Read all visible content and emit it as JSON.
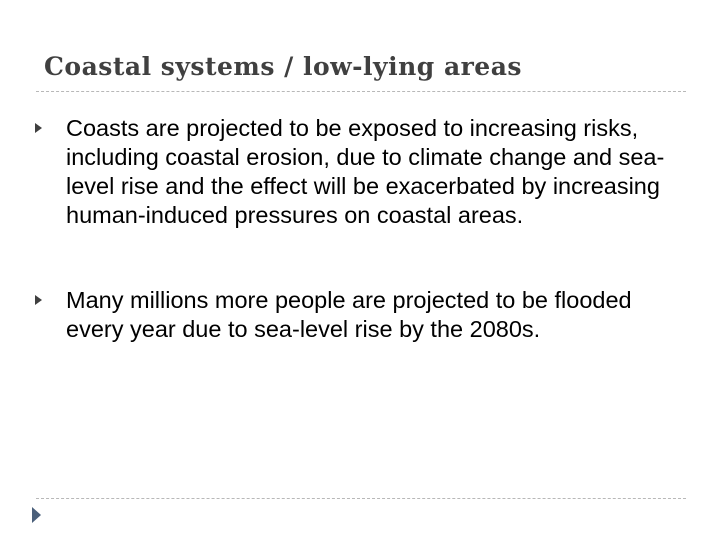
{
  "slide": {
    "title": "Coastal systems / low-lying areas",
    "bullets": [
      {
        "text": "Coasts are projected to be exposed to increasing risks, including coastal erosion, due to climate change and sea-level rise and the effect will be exacerbated by increasing human-induced pressures on coastal areas."
      },
      {
        "text": "Many millions more people are projected to be flooded every year due to sea-level rise by the 2080s."
      }
    ]
  },
  "icons": {
    "bullet_marker": "triangle-bullet-icon",
    "nav_arrow": "next-slide-icon"
  },
  "colors": {
    "title": "#404040",
    "body_text": "#000000",
    "bullet": "#404040",
    "divider": "#b8b8b8",
    "nav_arrow": "#4a5f7a"
  }
}
